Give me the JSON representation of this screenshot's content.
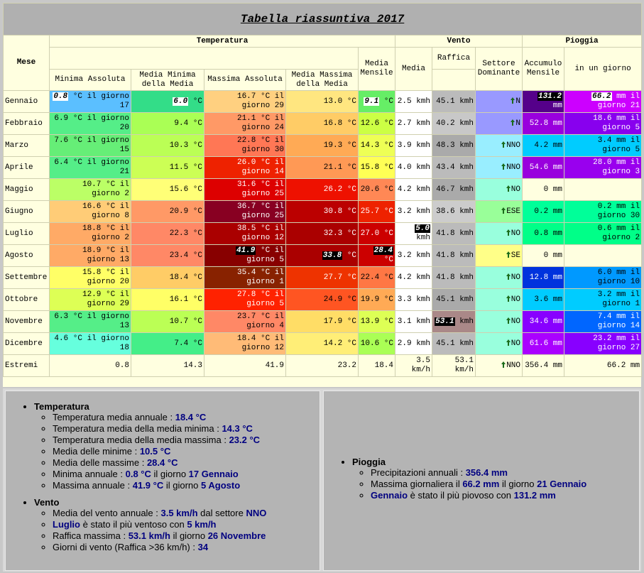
{
  "title": "Tabella riassuntiva 2017",
  "header": {
    "mese": "Mese",
    "groups": [
      "Temperatura",
      "Vento",
      "Pioggia"
    ],
    "columns": [
      "Minima Assoluta",
      "Media Minima della Media",
      "Massima Assoluta",
      "Media Massima della Media",
      "Media Mensile",
      "Media",
      "Raffica",
      "Settore Dominante",
      "Accumulo Mensile",
      "in un giorno"
    ]
  },
  "table": {
    "rows": [
      {
        "month": "Gennaio",
        "cells": [
          [
            "0.8",
            "°C il giorno 17",
            "#5bbfff",
            "w"
          ],
          [
            "6.0",
            "°C",
            "#33dd88",
            "w"
          ],
          [
            "16.7",
            "°C il giorno 29",
            "#ffd080"
          ],
          [
            "13.0",
            "°C",
            "#ffe680"
          ],
          [
            "9.1",
            "°C",
            "#66ee66",
            "w"
          ],
          [
            "2.5",
            "kmh",
            "#ffffff"
          ],
          [
            "45.1",
            "kmh",
            "#bbbbbb"
          ],
          [
            "N",
            "#9999ff"
          ],
          [
            "131.2",
            "mm",
            "#55008a",
            "b"
          ],
          [
            "66.2",
            "mm il giorno 21",
            "#cc00ff",
            "w"
          ]
        ]
      },
      {
        "month": "Febbraio",
        "cells": [
          [
            "6.9",
            "°C il giorno 20",
            "#55ee88"
          ],
          [
            "9.4",
            "°C",
            "#aaff55"
          ],
          [
            "21.1",
            "°C il giorno 24",
            "#ff9966"
          ],
          [
            "16.8",
            "°C",
            "#ffcc66"
          ],
          [
            "12.6",
            "°C",
            "#ccff44"
          ],
          [
            "2.7",
            "kmh",
            "#ffffff"
          ],
          [
            "40.2",
            "kmh",
            "#c8c8c8"
          ],
          [
            "N",
            "#9999ff"
          ],
          [
            "52.8",
            "mm",
            "#9900dd"
          ],
          [
            "18.6",
            "mm il giorno 5",
            "#8800ee"
          ]
        ]
      },
      {
        "month": "Marzo",
        "cells": [
          [
            "7.6",
            "°C il giorno 15",
            "#66ee77"
          ],
          [
            "10.3",
            "°C",
            "#bbff55"
          ],
          [
            "22.8",
            "°C il giorno 30",
            "#ff7755"
          ],
          [
            "19.3",
            "°C",
            "#ffaa55"
          ],
          [
            "14.3",
            "°C",
            "#eeff55"
          ],
          [
            "3.9",
            "kmh",
            "#ffffff"
          ],
          [
            "48.3",
            "kmh",
            "#aaaaaa"
          ],
          [
            "NNO",
            "#99eeff"
          ],
          [
            "4.2",
            "mm",
            "#00ccff"
          ],
          [
            "3.4",
            "mm il giorno 5",
            "#00ccff"
          ]
        ]
      },
      {
        "month": "Aprile",
        "cells": [
          [
            "6.4",
            "°C il giorno 21",
            "#55ee88"
          ],
          [
            "11.5",
            "°C",
            "#ccff55"
          ],
          [
            "26.0",
            "°C il giorno 14",
            "#ee2200"
          ],
          [
            "21.1",
            "°C",
            "#ff9955"
          ],
          [
            "15.8",
            "°C",
            "#ffff55"
          ],
          [
            "4.0",
            "kmh",
            "#ffffff"
          ],
          [
            "43.4",
            "kmh",
            "#bbbbbb"
          ],
          [
            "NNO",
            "#99eeff"
          ],
          [
            "54.6",
            "mm",
            "#9900dd"
          ],
          [
            "28.0",
            "mm il giorno 3",
            "#9900ee"
          ]
        ]
      },
      {
        "month": "Maggio",
        "cells": [
          [
            "10.7",
            "°C il giorno 2",
            "#bbff66"
          ],
          [
            "15.6",
            "°C",
            "#ffff77"
          ],
          [
            "31.6",
            "°C il giorno 25",
            "#dd0000"
          ],
          [
            "26.2",
            "°C",
            "#ee1100"
          ],
          [
            "20.6",
            "°C",
            "#ff8855"
          ],
          [
            "4.2",
            "kmh",
            "#ffffff"
          ],
          [
            "46.7",
            "kmh",
            "#aaaaaa"
          ],
          [
            "NO",
            "#99ffdd"
          ],
          [
            "0",
            "mm",
            "#ffffe0"
          ],
          null
        ]
      },
      {
        "month": "Giugno",
        "cells": [
          [
            "16.6",
            "°C il giorno 8",
            "#ffcc77"
          ],
          [
            "20.9",
            "°C",
            "#ff9966"
          ],
          [
            "36.7",
            "°C il giorno 25",
            "#880022"
          ],
          [
            "30.8",
            "°C",
            "#bb0000"
          ],
          [
            "25.7",
            "°C",
            "#ee2200"
          ],
          [
            "3.2",
            "kmh",
            "#ffffff"
          ],
          [
            "38.6",
            "kmh",
            "#cccccc"
          ],
          [
            "ESE",
            "#99ff99"
          ],
          [
            "0.2",
            "mm",
            "#00ff99"
          ],
          [
            "0.2",
            "mm il giorno 30",
            "#00ff99"
          ]
        ]
      },
      {
        "month": "Luglio",
        "cells": [
          [
            "18.8",
            "°C il giorno 2",
            "#ffaa66"
          ],
          [
            "22.3",
            "°C",
            "#ff8866"
          ],
          [
            "38.5",
            "°C il giorno 12",
            "#aa0000"
          ],
          [
            "32.3",
            "°C",
            "#aa0000"
          ],
          [
            "27.0",
            "°C",
            "#cc0000"
          ],
          [
            "5.0",
            "kmh",
            "#ffffff",
            "b"
          ],
          [
            "41.8",
            "kmh",
            "#bbbbbb"
          ],
          [
            "NO",
            "#99ffdd"
          ],
          [
            "0.8",
            "mm",
            "#00ff88"
          ],
          [
            "0.6",
            "mm il giorno 2",
            "#00ff88"
          ]
        ]
      },
      {
        "month": "Agosto",
        "cells": [
          [
            "18.9",
            "°C il giorno 13",
            "#ffaa66"
          ],
          [
            "23.4",
            "°C",
            "#ff8866"
          ],
          [
            "41.9",
            "°C il giorno 5",
            "#880000",
            "b"
          ],
          [
            "33.8",
            "°C",
            "#aa0000",
            "b"
          ],
          [
            "28.4",
            "°C",
            "#cc0000",
            "b"
          ],
          [
            "3.2",
            "kmh",
            "#ffffff"
          ],
          [
            "41.8",
            "kmh",
            "#bbbbbb"
          ],
          [
            "SE",
            "#ffff88"
          ],
          [
            "0",
            "mm",
            "#ffffe0"
          ],
          null
        ]
      },
      {
        "month": "Settembre",
        "cells": [
          [
            "15.8",
            "°C il giorno 20",
            "#ffff66"
          ],
          [
            "18.4",
            "°C",
            "#ffcc66"
          ],
          [
            "35.4",
            "°C il giorno 1",
            "#882200"
          ],
          [
            "27.7",
            "°C",
            "#ee3300"
          ],
          [
            "22.4",
            "°C",
            "#ff7744"
          ],
          [
            "4.2",
            "kmh",
            "#ffffff"
          ],
          [
            "41.8",
            "kmh",
            "#bbbbbb"
          ],
          [
            "NO",
            "#99ffdd"
          ],
          [
            "12.8",
            "mm",
            "#0033dd"
          ],
          [
            "6.0",
            "mm il giorno 10",
            "#0099ff"
          ]
        ]
      },
      {
        "month": "Ottobre",
        "cells": [
          [
            "12.9",
            "°C il giorno 29",
            "#ddff55"
          ],
          [
            "16.1",
            "°C",
            "#ffff66"
          ],
          [
            "27.8",
            "°C il giorno 5",
            "#ff2200"
          ],
          [
            "24.9",
            "°C",
            "#ff5522"
          ],
          [
            "19.9",
            "°C",
            "#ffaa55"
          ],
          [
            "3.3",
            "kmh",
            "#ffffff"
          ],
          [
            "45.1",
            "kmh",
            "#aaaaaa"
          ],
          [
            "NO",
            "#99ffdd"
          ],
          [
            "3.6",
            "mm",
            "#00ccff"
          ],
          [
            "3.2",
            "mm il giorno 1",
            "#00ccff"
          ]
        ]
      },
      {
        "month": "Novembre",
        "cells": [
          [
            "6.3",
            "°C il giorno 13",
            "#55ee88"
          ],
          [
            "10.7",
            "°C",
            "#bbff55"
          ],
          [
            "23.7",
            "°C il giorno 4",
            "#ff8866"
          ],
          [
            "17.9",
            "°C",
            "#ffdd66"
          ],
          [
            "13.9",
            "°C",
            "#ddff55"
          ],
          [
            "3.1",
            "kmh",
            "#ffffff"
          ],
          [
            "53.1",
            "kmh",
            "#aa8888",
            "b"
          ],
          [
            "NO",
            "#99ffdd"
          ],
          [
            "34.6",
            "mm",
            "#8800ff"
          ],
          [
            "7.4",
            "mm il giorno 14",
            "#0066ff"
          ]
        ]
      },
      {
        "month": "Dicembre",
        "cells": [
          [
            "4.6",
            "°C il giorno 18",
            "#66ffdd"
          ],
          [
            "7.4",
            "°C",
            "#44ee88"
          ],
          [
            "18.4",
            "°C il giorno 12",
            "#ffbb77"
          ],
          [
            "14.2",
            "°C",
            "#ffee77"
          ],
          [
            "10.6",
            "°C",
            "#aaff55"
          ],
          [
            "2.9",
            "kmh",
            "#ffffff"
          ],
          [
            "45.1",
            "kmh",
            "#bbbbbb"
          ],
          [
            "NO",
            "#99ffdd"
          ],
          [
            "61.6",
            "mm",
            "#aa00ff"
          ],
          [
            "23.2",
            "mm il giorno 27",
            "#8800ff"
          ]
        ]
      }
    ],
    "extremes": {
      "month": "Estremi",
      "cells": [
        "0.8",
        "14.3",
        "41.9",
        "23.2",
        "18.4",
        "3.5 km/h",
        "53.1 km/h",
        "NNO",
        "356.4 mm",
        "66.2 mm"
      ]
    }
  },
  "summary": [
    {
      "sections": [
        {
          "title": "Temperatura",
          "items": [
            [
              {
                "t": "Temperatura media annuale : "
              },
              {
                "t": "18.4 °C",
                "b": true
              }
            ],
            [
              {
                "t": "Temperatura media della media minima : "
              },
              {
                "t": "14.3 °C",
                "b": true
              }
            ],
            [
              {
                "t": "Temperatura media della media massima : "
              },
              {
                "t": "23.2 °C",
                "b": true
              }
            ],
            [
              {
                "t": "Media delle minime : "
              },
              {
                "t": "10.5 °C",
                "b": true
              }
            ],
            [
              {
                "t": "Media delle massime : "
              },
              {
                "t": "28.4 °C",
                "b": true
              }
            ],
            [
              {
                "t": "Minima annuale : "
              },
              {
                "t": "0.8 °C",
                "b": true
              },
              {
                "t": " il giorno "
              },
              {
                "t": "17 Gennaio",
                "b": true
              }
            ],
            [
              {
                "t": "Massima annuale : "
              },
              {
                "t": "41.9 °C",
                "b": true
              },
              {
                "t": " il giorno "
              },
              {
                "t": "5 Agosto",
                "b": true
              }
            ]
          ]
        },
        {
          "title": "Vento",
          "items": [
            [
              {
                "t": "Media del vento annuale : "
              },
              {
                "t": "3.5 km/h",
                "b": true
              },
              {
                "t": " dal settore "
              },
              {
                "t": "NNO",
                "b": true
              }
            ],
            [
              {
                "t": "Luglio",
                "b": true
              },
              {
                "t": " è stato il più ventoso con "
              },
              {
                "t": "5 km/h",
                "b": true
              }
            ],
            [
              {
                "t": "Raffica massima : "
              },
              {
                "t": "53.1 km/h",
                "b": true
              },
              {
                "t": " il giorno "
              },
              {
                "t": "26 Novembre",
                "b": true
              }
            ],
            [
              {
                "t": "Giorni di vento (Raffica >36 km/h) : "
              },
              {
                "t": "34",
                "b": true
              }
            ]
          ]
        }
      ]
    },
    {
      "sections": [
        {
          "title": "Pioggia",
          "items": [
            [
              {
                "t": "Precipitazioni annuali : "
              },
              {
                "t": "356.4 mm",
                "b": true
              }
            ],
            [
              {
                "t": "Massima giornaliera il "
              },
              {
                "t": "66.2 mm",
                "b": true
              },
              {
                "t": " il giorno "
              },
              {
                "t": "21 Gennaio",
                "b": true
              }
            ],
            [
              {
                "t": "Gennaio",
                "b": true
              },
              {
                "t": " è stato il più piovoso con "
              },
              {
                "t": "131.2 mm",
                "b": true
              }
            ]
          ]
        }
      ]
    }
  ]
}
